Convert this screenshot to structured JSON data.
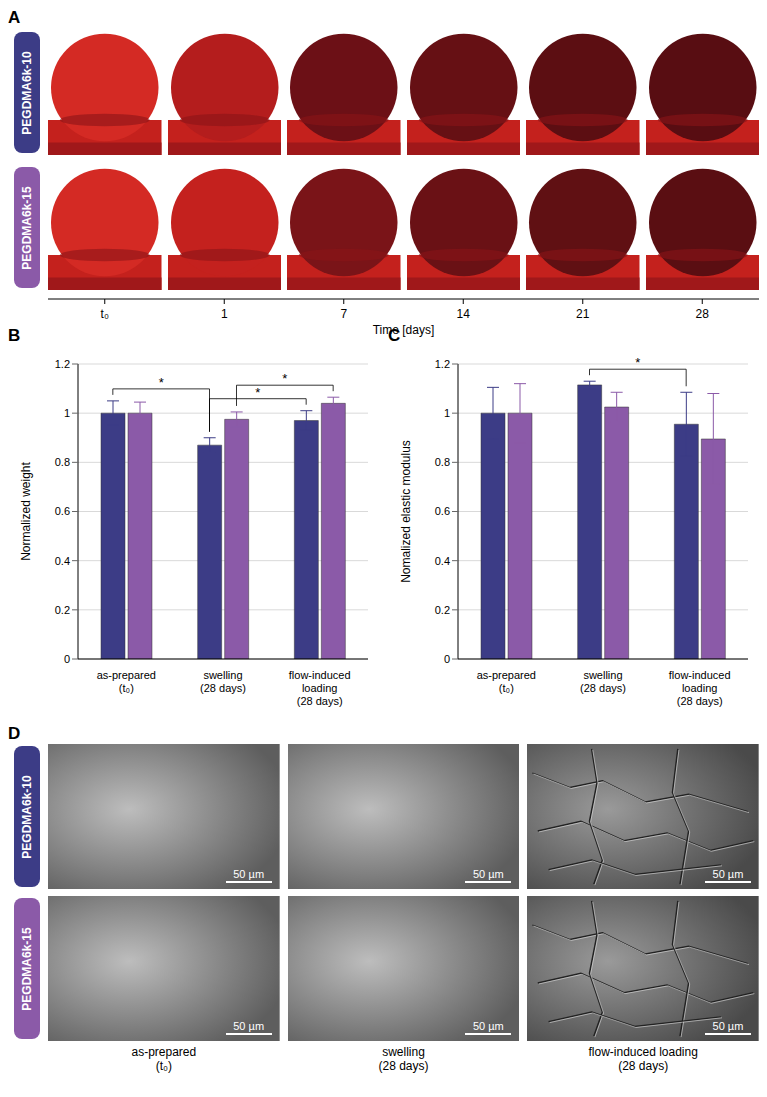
{
  "chart_data": [
    {
      "type": "image_grid",
      "title": "A",
      "rows": [
        "PEGDMA6k-10",
        "PEGDMA6k-15"
      ],
      "colors": [
        "#3c3c86",
        "#8b5aa8"
      ],
      "categories": [
        "t₀",
        "1",
        "7",
        "14",
        "21",
        "28"
      ],
      "xlabel": "Time [days]"
    },
    {
      "type": "bar",
      "title": "B",
      "ylabel": "Normalized weight",
      "categories": [
        "as-prepared\n(t₀)",
        "swelling\n(28 days)",
        "flow-induced\nloading\n(28 days)"
      ],
      "series": [
        {
          "name": "PEGDMA6k-10",
          "color": "#3c3c86",
          "values": [
            1.0,
            0.87,
            0.97
          ],
          "errors": [
            0.05,
            0.03,
            0.04
          ]
        },
        {
          "name": "PEGDMA6k-15",
          "color": "#8b5aa8",
          "values": [
            1.0,
            0.975,
            1.04
          ],
          "errors": [
            0.045,
            0.03,
            0.025
          ]
        }
      ],
      "ylim": [
        0,
        1.2
      ],
      "yticks": [
        0,
        0.2,
        0.4,
        0.6,
        0.8,
        1,
        1.2
      ],
      "grid": true,
      "annotations": [
        {
          "text": "*",
          "from": {
            "category": 0,
            "series": 0
          },
          "to": {
            "category": 1,
            "series": 0
          }
        },
        {
          "text": "*",
          "from": {
            "category": 1,
            "series": 0
          },
          "to": {
            "category": 2,
            "series": 0
          }
        },
        {
          "text": "*",
          "from": {
            "category": 1,
            "series": 1
          },
          "to": {
            "category": 2,
            "series": 1
          }
        }
      ]
    },
    {
      "type": "bar",
      "title": "C",
      "ylabel": "Nomalized elastic modulus",
      "categories": [
        "as-prepared\n(t₀)",
        "swelling\n(28 days)",
        "flow-induced\nloading\n(28 days)"
      ],
      "series": [
        {
          "name": "PEGDMA6k-10",
          "color": "#3c3c86",
          "values": [
            1.0,
            1.115,
            0.955
          ],
          "errors": [
            0.105,
            0.015,
            0.13
          ]
        },
        {
          "name": "PEGDMA6k-15",
          "color": "#8b5aa8",
          "values": [
            1.0,
            1.025,
            0.895
          ],
          "errors": [
            0.12,
            0.06,
            0.185
          ]
        }
      ],
      "ylim": [
        0,
        1.2
      ],
      "yticks": [
        0,
        0.2,
        0.4,
        0.6,
        0.8,
        1,
        1.2
      ],
      "grid": true,
      "annotations": [
        {
          "text": "*",
          "from": {
            "category": 1,
            "series": 0
          },
          "to": {
            "category": 2,
            "series": 0
          }
        }
      ]
    },
    {
      "type": "image_grid",
      "title": "D",
      "rows": [
        "PEGDMA6k-10",
        "PEGDMA6k-15"
      ],
      "colors": [
        "#3c3c86",
        "#8b5aa8"
      ],
      "categories": [
        "as-prepared\n(t₀)",
        "swelling\n(28 days)",
        "flow-induced loading\n(28 days)"
      ],
      "scale_bar": "50 µm"
    }
  ]
}
